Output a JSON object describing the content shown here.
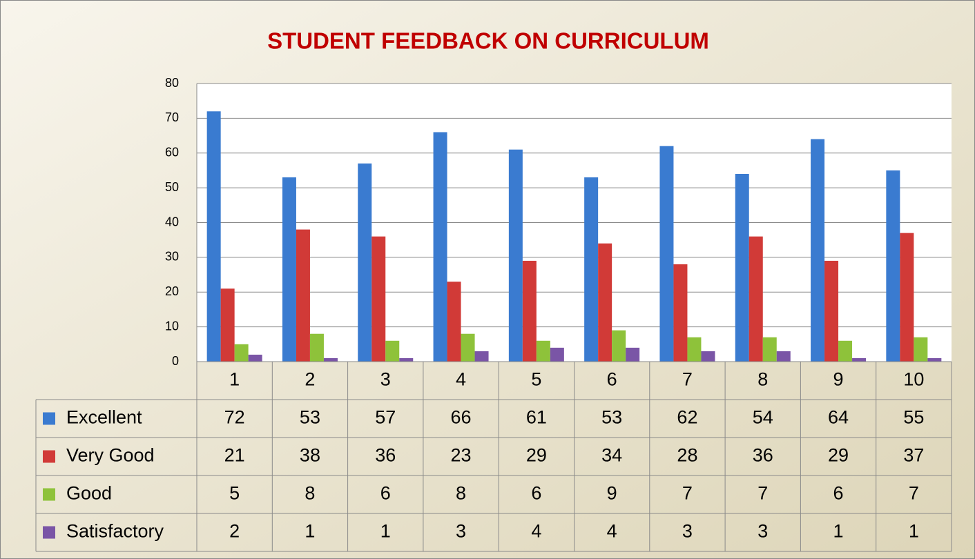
{
  "chart_data": {
    "type": "bar",
    "title": "STUDENT FEEDBACK ON CURRICULUM",
    "categories": [
      "1",
      "2",
      "3",
      "4",
      "5",
      "6",
      "7",
      "8",
      "9",
      "10"
    ],
    "series": [
      {
        "name": "Excellent",
        "color": "#3a7bd0",
        "values": [
          72,
          53,
          57,
          66,
          61,
          53,
          62,
          54,
          64,
          55
        ]
      },
      {
        "name": "Very Good",
        "color": "#d13a37",
        "values": [
          21,
          38,
          36,
          23,
          29,
          34,
          28,
          36,
          29,
          37
        ]
      },
      {
        "name": "Good",
        "color": "#8ec23a",
        "values": [
          5,
          8,
          6,
          8,
          6,
          9,
          7,
          7,
          6,
          7
        ]
      },
      {
        "name": "Satisfactory",
        "color": "#7a55a6",
        "values": [
          2,
          1,
          1,
          3,
          4,
          4,
          3,
          3,
          1,
          1
        ]
      }
    ],
    "ylim": [
      0,
      80
    ],
    "yticks": [
      0,
      10,
      20,
      30,
      40,
      50,
      60,
      70,
      80
    ],
    "grid": true
  }
}
